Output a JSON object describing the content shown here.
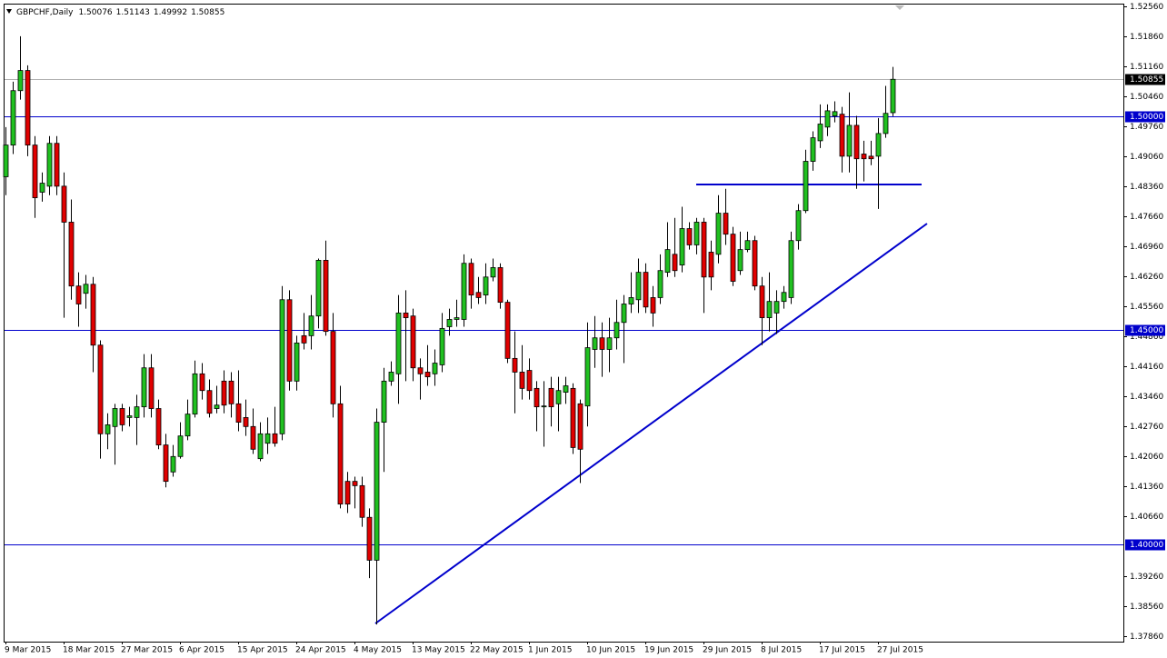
{
  "chart_data": {
    "type": "candlestick",
    "title": "GBPCHF,Daily",
    "up_color": "#20c020",
    "down_color": "#e00000",
    "level_color": "#0000cc",
    "categories": [
      "9 Mar 2015",
      null,
      null,
      null,
      null,
      null,
      null,
      null,
      "18 Mar 2015",
      null,
      null,
      null,
      null,
      null,
      null,
      null,
      "27 Mar 2015",
      null,
      null,
      null,
      null,
      null,
      null,
      null,
      "6 Apr 2015",
      null,
      null,
      null,
      null,
      null,
      null,
      null,
      "15 Apr 2015",
      null,
      null,
      null,
      null,
      null,
      null,
      null,
      "24 Apr 2015",
      null,
      null,
      null,
      null,
      null,
      null,
      null,
      "4 May 2015",
      null,
      null,
      null,
      null,
      null,
      null,
      null,
      "13 May 2015",
      null,
      null,
      null,
      null,
      null,
      null,
      null,
      "22 May 2015",
      null,
      null,
      null,
      null,
      null,
      null,
      null,
      "1 Jun 2015",
      null,
      null,
      null,
      null,
      null,
      null,
      null,
      "10 Jun 2015",
      null,
      null,
      null,
      null,
      null,
      null,
      null,
      "19 Jun 2015",
      null,
      null,
      null,
      null,
      null,
      null,
      null,
      "29 Jun 2015",
      null,
      null,
      null,
      null,
      null,
      null,
      null,
      "8 Jul 2015",
      null,
      null,
      null,
      null,
      null,
      null,
      null,
      "17 Jul 2015",
      null,
      null,
      null,
      null,
      null,
      null,
      null,
      "27 Jul 2015",
      null,
      null
    ],
    "open": [
      1.4858,
      1.4932,
      1.5059,
      1.5106,
      1.4932,
      1.4822,
      1.4836,
      1.4936,
      1.4836,
      1.4752,
      1.4603,
      1.4586,
      1.4607,
      1.4465,
      1.4258,
      1.4275,
      1.4317,
      1.4296,
      1.4296,
      1.4321,
      1.4412,
      1.4317,
      1.4232,
      1.4169,
      1.4205,
      1.4253,
      1.4304,
      1.4398,
      1.4359,
      1.4317,
      1.4381,
      1.4381,
      1.4328,
      1.4296,
      1.4275,
      1.42,
      1.4236,
      1.4258,
      1.4258,
      1.4571,
      1.4381,
      1.4487,
      1.4487,
      1.4533,
      1.4663,
      1.4497,
      1.4328,
      1.4147,
      1.4147,
      1.4137,
      1.4063,
      1.3963,
      1.4285,
      1.4381,
      1.4398,
      1.454,
      1.4533,
      1.4412,
      1.4402,
      1.4398,
      1.4419,
      1.4508,
      1.4525,
      1.4525,
      1.4656,
      1.4588,
      1.4582,
      1.4624,
      1.4646,
      1.4565,
      1.4434,
      1.4402,
      1.4406,
      1.4364,
      1.4321,
      1.4364,
      1.4328,
      1.4355,
      1.4364,
      1.4328,
      1.4323,
      1.4455,
      1.4482,
      1.4455,
      1.4482,
      1.4518,
      1.4561,
      1.4571,
      1.4635,
      1.4576,
      1.4576,
      1.4635,
      1.4677,
      1.4652,
      1.4737,
      1.4699,
      1.4752,
      1.4682,
      1.4677,
      1.4773,
      1.4724,
      1.4639,
      1.4688,
      1.4709,
      1.4603,
      1.4529,
      1.454,
      1.4567,
      1.4576,
      1.4709,
      1.4779,
      1.4894,
      1.4942,
      1.4974,
      1.5,
      1.5004,
      1.4906,
      1.4978,
      1.4911,
      1.4906,
      1.4906,
      1.4959,
      1.50076
    ],
    "high": [
      1.4974,
      1.508,
      1.5186,
      1.5118,
      1.4953,
      1.4868,
      1.4953,
      1.4953,
      1.4868,
      1.4805,
      1.4635,
      1.4629,
      1.4624,
      1.4476,
      1.4306,
      1.4328,
      1.4328,
      1.4321,
      1.4349,
      1.4444,
      1.4444,
      1.4338,
      1.4258,
      1.4232,
      1.4285,
      1.4338,
      1.4429,
      1.4423,
      1.4385,
      1.437,
      1.4406,
      1.4402,
      1.4406,
      1.4338,
      1.4317,
      1.4285,
      1.4296,
      1.4321,
      1.4603,
      1.4593,
      1.4487,
      1.454,
      1.4582,
      1.4667,
      1.4709,
      1.454,
      1.437,
      1.4169,
      1.4158,
      1.4158,
      1.4084,
      1.4317,
      1.4412,
      1.4427,
      1.4582,
      1.4593,
      1.455,
      1.4434,
      1.4465,
      1.4455,
      1.454,
      1.455,
      1.4571,
      1.4677,
      1.4667,
      1.4624,
      1.4656,
      1.4667,
      1.4656,
      1.4571,
      1.4497,
      1.4465,
      1.4434,
      1.4381,
      1.4381,
      1.4391,
      1.4391,
      1.4391,
      1.4376,
      1.4338,
      1.4518,
      1.4533,
      1.4518,
      1.4529,
      1.4571,
      1.4582,
      1.4635,
      1.4667,
      1.4656,
      1.4603,
      1.4677,
      1.4752,
      1.4762,
      1.4788,
      1.4752,
      1.4762,
      1.4762,
      1.4709,
      1.4815,
      1.483,
      1.4741,
      1.473,
      1.473,
      1.472,
      1.4624,
      1.4635,
      1.4593,
      1.4603,
      1.473,
      1.4794,
      1.4921,
      1.4964,
      1.5027,
      1.5027,
      1.5034,
      1.5021,
      1.5055,
      1.5,
      1.4942,
      1.4942,
      1.4995,
      1.507,
      1.51143
    ],
    "low": [
      1.4815,
      1.4911,
      1.5038,
      1.4906,
      1.4762,
      1.48,
      1.4815,
      1.4815,
      1.4529,
      1.4571,
      1.4508,
      1.455,
      1.4402,
      1.42,
      1.4222,
      1.4186,
      1.4264,
      1.4275,
      1.4232,
      1.4296,
      1.4296,
      1.4222,
      1.4133,
      1.4158,
      1.42,
      1.4243,
      1.4296,
      1.4338,
      1.4296,
      1.4306,
      1.4306,
      1.4296,
      1.4264,
      1.4253,
      1.4211,
      1.4194,
      1.4211,
      1.4228,
      1.4243,
      1.4359,
      1.4359,
      1.4455,
      1.4455,
      1.4504,
      1.4487,
      1.4296,
      1.4084,
      1.4073,
      1.4084,
      1.4041,
      1.3921,
      1.3813,
      1.4169,
      1.437,
      1.4328,
      1.4381,
      1.4381,
      1.4338,
      1.437,
      1.437,
      1.4402,
      1.4487,
      1.4508,
      1.4508,
      1.455,
      1.4561,
      1.4561,
      1.4614,
      1.455,
      1.4423,
      1.4306,
      1.4338,
      1.4338,
      1.4264,
      1.4228,
      1.4275,
      1.4264,
      1.4328,
      1.4211,
      1.4143,
      1.4275,
      1.4412,
      1.4391,
      1.4402,
      1.4455,
      1.4423,
      1.454,
      1.454,
      1.454,
      1.4508,
      1.4561,
      1.4624,
      1.4624,
      1.4635,
      1.4688,
      1.4677,
      1.454,
      1.4593,
      1.4656,
      1.4699,
      1.4603,
      1.4629,
      1.4682,
      1.4593,
      1.4465,
      1.4497,
      1.4491,
      1.455,
      1.4561,
      1.4688,
      1.4773,
      1.4872,
      1.4925,
      1.4953,
      1.4985,
      1.4868,
      1.4868,
      1.483,
      1.4847,
      1.4885,
      1.4783,
      1.4949,
      1.49992
    ],
    "close": [
      1.4932,
      1.5059,
      1.5106,
      1.4932,
      1.4809,
      1.4843,
      1.4936,
      1.4836,
      1.4752,
      1.4603,
      1.4561,
      1.4607,
      1.4465,
      1.4258,
      1.4279,
      1.4317,
      1.4279,
      1.43,
      1.4321,
      1.4412,
      1.4317,
      1.4232,
      1.4147,
      1.4205,
      1.4253,
      1.4304,
      1.4398,
      1.4359,
      1.4306,
      1.4325,
      1.4325,
      1.4328,
      1.4285,
      1.4275,
      1.4222,
      1.4258,
      1.4258,
      1.4236,
      1.4571,
      1.4381,
      1.447,
      1.447,
      1.4533,
      1.4663,
      1.4497,
      1.4328,
      1.4094,
      1.4094,
      1.4137,
      1.4063,
      1.3963,
      1.4285,
      1.4381,
      1.4402,
      1.454,
      1.4529,
      1.4412,
      1.4398,
      1.4391,
      1.4423,
      1.4504,
      1.4525,
      1.4529,
      1.4656,
      1.4582,
      1.4576,
      1.4624,
      1.4646,
      1.4565,
      1.4434,
      1.4402,
      1.4364,
      1.4359,
      1.4321,
      1.4323,
      1.4321,
      1.4359,
      1.437,
      1.4226,
      1.4222,
      1.4459,
      1.4482,
      1.4455,
      1.4482,
      1.4518,
      1.4561,
      1.4576,
      1.4635,
      1.4554,
      1.454,
      1.4639,
      1.4688,
      1.4639,
      1.4737,
      1.4699,
      1.4752,
      1.4624,
      1.4624,
      1.4773,
      1.4724,
      1.4614,
      1.4688,
      1.4709,
      1.4603,
      1.4529,
      1.4567,
      1.4567,
      1.4588,
      1.4709,
      1.4779,
      1.4894,
      1.4949,
      1.4981,
      1.5012,
      1.501,
      1.4906,
      1.4978,
      1.49,
      1.49,
      1.49,
      1.4959,
      1.5006,
      1.50855
    ],
    "levels": [
      {
        "value": 1.5,
        "label": "1.50000"
      },
      {
        "value": 1.45,
        "label": "1.45000"
      },
      {
        "value": 1.4,
        "label": "1.40000"
      }
    ],
    "ylim": [
      1.3775,
      1.526
    ],
    "yticks": [
      {
        "value": 1.5256,
        "label": "1.52560"
      },
      {
        "value": 1.5186,
        "label": "1.51860"
      },
      {
        "value": 1.5116,
        "label": "1.51160"
      },
      {
        "value": 1.5046,
        "label": "1.50460"
      },
      {
        "value": 1.4976,
        "label": "1.49760"
      },
      {
        "value": 1.4906,
        "label": "1.49060"
      },
      {
        "value": 1.4836,
        "label": "1.48360"
      },
      {
        "value": 1.4766,
        "label": "1.47660"
      },
      {
        "value": 1.4696,
        "label": "1.46960"
      },
      {
        "value": 1.4626,
        "label": "1.46260"
      },
      {
        "value": 1.4556,
        "label": "1.45560"
      },
      {
        "value": 1.4486,
        "label": "1.44860"
      },
      {
        "value": 1.4416,
        "label": "1.44160"
      },
      {
        "value": 1.4346,
        "label": "1.43460"
      },
      {
        "value": 1.4276,
        "label": "1.42760"
      },
      {
        "value": 1.4206,
        "label": "1.42060"
      },
      {
        "value": 1.4136,
        "label": "1.41360"
      },
      {
        "value": 1.4066,
        "label": "1.40660"
      },
      {
        "value": 1.3926,
        "label": "1.39260"
      },
      {
        "value": 1.3856,
        "label": "1.38560"
      },
      {
        "value": 1.3786,
        "label": "1.37860"
      }
    ]
  }
}
